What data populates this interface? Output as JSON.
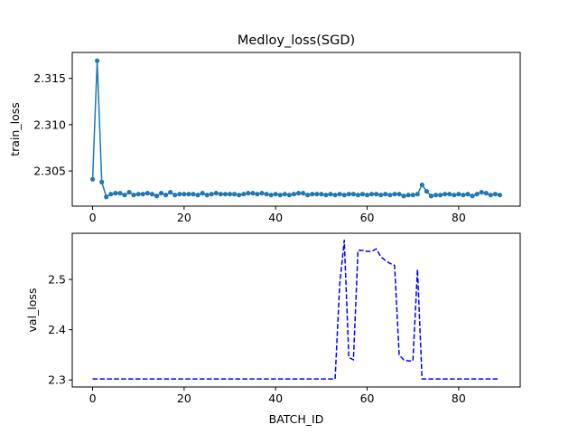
{
  "chart_data": [
    {
      "type": "line",
      "title": "Medloy_loss(SGD)",
      "xlabel": "",
      "ylabel": "train_loss",
      "xlim": [
        -4.45,
        93.45
      ],
      "ylim": [
        2.3012,
        2.3178
      ],
      "x_ticks": [
        0,
        20,
        40,
        60,
        80
      ],
      "y_ticks": [
        2.305,
        2.31,
        2.315
      ],
      "y_tick_labels": [
        "2.305",
        "2.310",
        "2.315"
      ],
      "grid": false,
      "series": [
        {
          "color": "#1f77b4",
          "marker": "circle",
          "line_style": "solid",
          "x": [
            0,
            1,
            2,
            3,
            4,
            5,
            6,
            7,
            8,
            9,
            10,
            11,
            12,
            13,
            14,
            15,
            16,
            17,
            18,
            19,
            20,
            21,
            22,
            23,
            24,
            25,
            26,
            27,
            28,
            29,
            30,
            31,
            32,
            33,
            34,
            35,
            36,
            37,
            38,
            39,
            40,
            41,
            42,
            43,
            44,
            45,
            46,
            47,
            48,
            49,
            50,
            51,
            52,
            53,
            54,
            55,
            56,
            57,
            58,
            59,
            60,
            61,
            62,
            63,
            64,
            65,
            66,
            67,
            68,
            69,
            70,
            71,
            72,
            73,
            74,
            75,
            76,
            77,
            78,
            79,
            80,
            81,
            82,
            83,
            84,
            85,
            86,
            87,
            88,
            89
          ],
          "y": [
            2.3041,
            2.3169,
            2.3038,
            2.3022,
            2.3025,
            2.3026,
            2.3026,
            2.3024,
            2.3027,
            2.3024,
            2.3025,
            2.3025,
            2.3026,
            2.3025,
            2.3023,
            2.3026,
            2.3024,
            2.3027,
            2.3024,
            2.3025,
            2.3025,
            2.3025,
            2.3025,
            2.3024,
            2.3026,
            2.3024,
            2.3025,
            2.3026,
            2.3025,
            2.3025,
            2.3025,
            2.3025,
            2.3024,
            2.3025,
            2.3026,
            2.3026,
            2.3025,
            2.3026,
            2.3025,
            2.3024,
            2.3025,
            2.3024,
            2.3025,
            2.3024,
            2.3025,
            2.3026,
            2.3026,
            2.3024,
            2.3025,
            2.3025,
            2.3025,
            2.3024,
            2.3025,
            2.3024,
            2.3025,
            2.3024,
            2.3025,
            2.3025,
            2.3024,
            2.3025,
            2.3024,
            2.3025,
            2.3025,
            2.3024,
            2.3025,
            2.3024,
            2.3025,
            2.3025,
            2.3023,
            2.3024,
            2.3024,
            2.3025,
            2.3035,
            2.3028,
            2.3023,
            2.3024,
            2.3024,
            2.3025,
            2.3025,
            2.3024,
            2.3025,
            2.3024,
            2.3025,
            2.3023,
            2.3025,
            2.3027,
            2.3026,
            2.3024,
            2.3025,
            2.3024
          ]
        }
      ]
    },
    {
      "type": "line",
      "title": "",
      "xlabel": "BATCH_ID",
      "ylabel": "val_loss",
      "xlim": [
        -4.45,
        93.45
      ],
      "ylim": [
        2.286,
        2.592
      ],
      "x_ticks": [
        0,
        20,
        40,
        60,
        80
      ],
      "y_ticks": [
        2.3,
        2.4,
        2.5
      ],
      "y_tick_labels": [
        "2.3",
        "2.4",
        "2.5"
      ],
      "grid": false,
      "series": [
        {
          "color": "#0000ff",
          "marker": "none",
          "line_style": "dashed",
          "x": [
            0,
            1,
            2,
            3,
            4,
            5,
            6,
            7,
            8,
            9,
            10,
            11,
            12,
            13,
            14,
            15,
            16,
            17,
            18,
            19,
            20,
            21,
            22,
            23,
            24,
            25,
            26,
            27,
            28,
            29,
            30,
            31,
            32,
            33,
            34,
            35,
            36,
            37,
            38,
            39,
            40,
            41,
            42,
            43,
            44,
            45,
            46,
            47,
            48,
            49,
            50,
            51,
            52,
            53,
            54,
            55,
            56,
            57,
            58,
            59,
            60,
            61,
            62,
            63,
            64,
            65,
            66,
            67,
            68,
            69,
            70,
            71,
            72,
            73,
            74,
            75,
            76,
            77,
            78,
            79,
            80,
            81,
            82,
            83,
            84,
            85,
            86,
            87,
            88,
            89
          ],
          "y": [
            2.302,
            2.302,
            2.302,
            2.302,
            2.302,
            2.302,
            2.302,
            2.302,
            2.302,
            2.302,
            2.302,
            2.302,
            2.302,
            2.302,
            2.302,
            2.302,
            2.302,
            2.302,
            2.302,
            2.302,
            2.302,
            2.302,
            2.302,
            2.302,
            2.302,
            2.302,
            2.302,
            2.302,
            2.302,
            2.302,
            2.302,
            2.302,
            2.302,
            2.302,
            2.302,
            2.302,
            2.302,
            2.302,
            2.302,
            2.302,
            2.302,
            2.302,
            2.302,
            2.302,
            2.302,
            2.302,
            2.302,
            2.302,
            2.302,
            2.302,
            2.302,
            2.302,
            2.302,
            2.302,
            2.49,
            2.578,
            2.345,
            2.34,
            2.558,
            2.558,
            2.556,
            2.556,
            2.561,
            2.545,
            2.538,
            2.532,
            2.528,
            2.35,
            2.34,
            2.338,
            2.338,
            2.52,
            2.302,
            2.302,
            2.302,
            2.302,
            2.302,
            2.302,
            2.302,
            2.302,
            2.302,
            2.302,
            2.302,
            2.302,
            2.302,
            2.302,
            2.302,
            2.302,
            2.302,
            2.302
          ]
        }
      ]
    }
  ]
}
